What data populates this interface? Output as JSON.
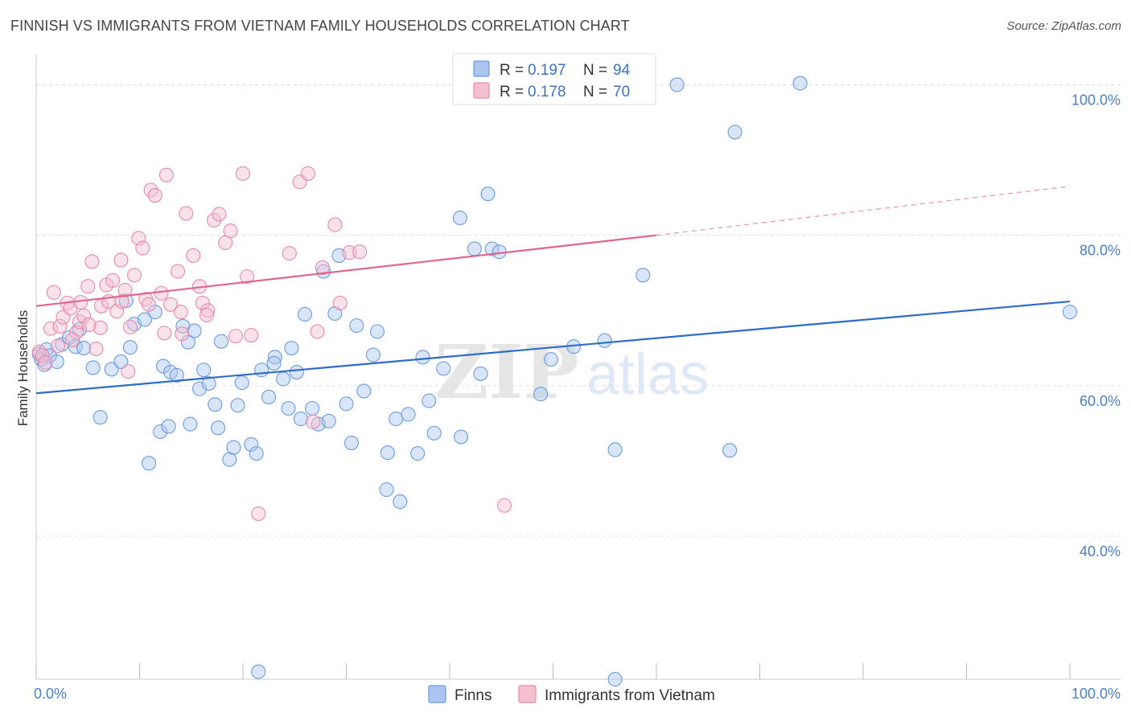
{
  "title": "FINNISH VS IMMIGRANTS FROM VIETNAM FAMILY HOUSEHOLDS CORRELATION CHART",
  "source": "Source: ZipAtlas.com",
  "watermark": {
    "zip": "ZIP",
    "atlas": "atlas"
  },
  "chart_data": {
    "type": "scatter",
    "title": "FINNISH VS IMMIGRANTS FROM VIETNAM FAMILY HOUSEHOLDS CORRELATION CHART",
    "xlabel": "",
    "ylabel": "Family Households",
    "xlim": [
      0,
      100
    ],
    "ylim": [
      21,
      104
    ],
    "x_tick_labels": {
      "left": "0.0%",
      "right": "100.0%"
    },
    "y_ticks": [
      {
        "value": 100,
        "label": "100.0%"
      },
      {
        "value": 80,
        "label": "80.0%"
      },
      {
        "value": 60,
        "label": "60.0%"
      },
      {
        "value": 40,
        "label": "40.0%"
      }
    ],
    "grid": true,
    "legend_position": "top-center",
    "legend": [
      {
        "r_label": "R =",
        "r_value": "0.197",
        "n_label": "N =",
        "n_value": "94"
      },
      {
        "r_label": "R =",
        "r_value": "0.178",
        "n_label": "N =",
        "n_value": "70"
      }
    ],
    "series": [
      {
        "name": "Finns",
        "color": "#6c9be0",
        "fill": "#aac6f0",
        "trend": {
          "x0": 0,
          "y0": 59.0,
          "x1": 100,
          "y1": 71.2,
          "color": "#2d6cc8"
        },
        "points": [
          [
            0.3,
            64.2
          ],
          [
            0.5,
            63.5
          ],
          [
            0.8,
            62.8
          ],
          [
            1.0,
            64.8
          ],
          [
            1.3,
            64.0
          ],
          [
            2.0,
            63.2
          ],
          [
            2.5,
            65.5
          ],
          [
            3.2,
            66.4
          ],
          [
            3.8,
            65.2
          ],
          [
            4.2,
            67.5
          ],
          [
            4.6,
            65.0
          ],
          [
            5.5,
            62.4
          ],
          [
            6.2,
            55.8
          ],
          [
            7.3,
            62.2
          ],
          [
            8.2,
            63.2
          ],
          [
            9.1,
            65.1
          ],
          [
            9.5,
            68.2
          ],
          [
            8.7,
            71.3
          ],
          [
            10.5,
            68.8
          ],
          [
            11.5,
            69.8
          ],
          [
            12.3,
            62.6
          ],
          [
            10.9,
            49.7
          ],
          [
            12.0,
            53.9
          ],
          [
            13.0,
            61.8
          ],
          [
            12.8,
            54.6
          ],
          [
            13.6,
            61.4
          ],
          [
            14.2,
            67.9
          ],
          [
            14.7,
            65.8
          ],
          [
            15.3,
            67.3
          ],
          [
            14.9,
            54.9
          ],
          [
            15.8,
            59.6
          ],
          [
            16.2,
            62.1
          ],
          [
            16.7,
            60.3
          ],
          [
            17.3,
            57.5
          ],
          [
            17.6,
            54.4
          ],
          [
            17.9,
            65.9
          ],
          [
            18.7,
            50.2
          ],
          [
            19.1,
            51.8
          ],
          [
            19.5,
            57.4
          ],
          [
            19.9,
            60.4
          ],
          [
            20.8,
            52.2
          ],
          [
            21.3,
            51.0
          ],
          [
            21.8,
            62.1
          ],
          [
            22.5,
            58.5
          ],
          [
            23.1,
            63.8
          ],
          [
            23.0,
            63.0
          ],
          [
            23.9,
            60.9
          ],
          [
            24.4,
            57.0
          ],
          [
            24.7,
            65.0
          ],
          [
            25.2,
            61.8
          ],
          [
            25.6,
            55.6
          ],
          [
            26.0,
            69.5
          ],
          [
            26.7,
            57.0
          ],
          [
            27.3,
            54.9
          ],
          [
            27.8,
            75.2
          ],
          [
            28.3,
            55.3
          ],
          [
            28.9,
            69.6
          ],
          [
            29.3,
            77.3
          ],
          [
            30.0,
            57.6
          ],
          [
            30.5,
            52.4
          ],
          [
            31.0,
            68.0
          ],
          [
            31.7,
            59.3
          ],
          [
            32.6,
            64.1
          ],
          [
            33.0,
            67.2
          ],
          [
            34.0,
            51.1
          ],
          [
            34.8,
            55.6
          ],
          [
            33.9,
            46.2
          ],
          [
            35.2,
            44.6
          ],
          [
            36.0,
            56.2
          ],
          [
            36.9,
            51.0
          ],
          [
            37.4,
            63.8
          ],
          [
            38.0,
            58.0
          ],
          [
            38.5,
            53.7
          ],
          [
            39.4,
            62.3
          ],
          [
            41.1,
            53.2
          ],
          [
            41.0,
            82.3
          ],
          [
            42.4,
            78.2
          ],
          [
            43.0,
            61.6
          ],
          [
            43.7,
            85.5
          ],
          [
            44.1,
            78.2
          ],
          [
            44.8,
            77.8
          ],
          [
            48.8,
            58.9
          ],
          [
            49.8,
            63.5
          ],
          [
            52.0,
            65.2
          ],
          [
            55.0,
            66.0
          ],
          [
            56.0,
            51.5
          ],
          [
            58.7,
            74.7
          ],
          [
            62.0,
            100.0
          ],
          [
            67.1,
            51.4
          ],
          [
            67.6,
            93.7
          ],
          [
            73.9,
            100.2
          ],
          [
            100.0,
            69.8
          ],
          [
            21.5,
            22.0
          ],
          [
            56.0,
            21.0
          ]
        ]
      },
      {
        "name": "Immigrants from Vietnam",
        "color": "#e88aa8",
        "fill": "#f5bfd0",
        "trend": {
          "x0": 0,
          "y0": 70.6,
          "x1": 60,
          "y1": 80.0,
          "dash_x1": 100,
          "dash_y1": 86.5,
          "color": "#e0648e"
        },
        "points": [
          [
            0.3,
            64.5
          ],
          [
            0.6,
            64.0
          ],
          [
            0.9,
            63.1
          ],
          [
            1.4,
            67.6
          ],
          [
            1.7,
            72.4
          ],
          [
            2.3,
            67.9
          ],
          [
            2.6,
            69.1
          ],
          [
            3.0,
            71.0
          ],
          [
            3.3,
            70.3
          ],
          [
            3.9,
            67.1
          ],
          [
            4.2,
            68.5
          ],
          [
            4.6,
            69.3
          ],
          [
            5.0,
            73.2
          ],
          [
            5.4,
            76.5
          ],
          [
            5.8,
            64.9
          ],
          [
            6.3,
            70.6
          ],
          [
            6.8,
            73.4
          ],
          [
            7.0,
            71.2
          ],
          [
            7.4,
            74.0
          ],
          [
            7.8,
            69.9
          ],
          [
            8.2,
            76.7
          ],
          [
            8.6,
            72.7
          ],
          [
            8.9,
            61.9
          ],
          [
            9.1,
            67.8
          ],
          [
            9.5,
            74.7
          ],
          [
            9.9,
            79.6
          ],
          [
            10.3,
            78.3
          ],
          [
            10.6,
            71.5
          ],
          [
            11.1,
            86.0
          ],
          [
            11.5,
            85.3
          ],
          [
            12.1,
            72.3
          ],
          [
            12.6,
            88.0
          ],
          [
            13.0,
            70.8
          ],
          [
            13.7,
            75.2
          ],
          [
            14.0,
            69.8
          ],
          [
            14.5,
            82.9
          ],
          [
            15.2,
            77.3
          ],
          [
            15.8,
            73.2
          ],
          [
            16.1,
            71.0
          ],
          [
            16.6,
            70.0
          ],
          [
            17.2,
            82.0
          ],
          [
            17.7,
            82.8
          ],
          [
            18.3,
            79.0
          ],
          [
            18.8,
            80.6
          ],
          [
            19.3,
            66.6
          ],
          [
            20.0,
            88.2
          ],
          [
            20.4,
            74.5
          ],
          [
            20.8,
            66.7
          ],
          [
            21.5,
            43.0
          ],
          [
            24.5,
            77.6
          ],
          [
            25.5,
            87.1
          ],
          [
            26.3,
            88.2
          ],
          [
            26.8,
            55.2
          ],
          [
            27.7,
            75.7
          ],
          [
            28.9,
            81.4
          ],
          [
            29.4,
            71.0
          ],
          [
            30.3,
            77.7
          ],
          [
            31.3,
            77.8
          ],
          [
            45.3,
            44.1
          ],
          [
            27.2,
            67.2
          ],
          [
            4.3,
            71.1
          ],
          [
            6.2,
            67.7
          ],
          [
            8.3,
            71.2
          ],
          [
            12.4,
            67.0
          ],
          [
            2.1,
            65.3
          ],
          [
            3.5,
            66.1
          ],
          [
            5.1,
            68.1
          ],
          [
            10.9,
            70.8
          ],
          [
            14.1,
            66.9
          ],
          [
            16.5,
            69.4
          ]
        ]
      }
    ]
  }
}
